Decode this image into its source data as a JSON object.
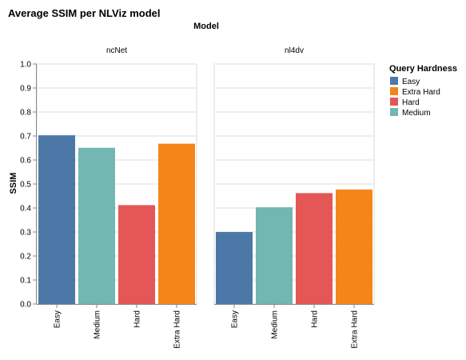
{
  "chart_data": {
    "type": "bar",
    "title": "Average SSIM per NLViz model",
    "facet_title": "Model",
    "ylabel": "SSIM",
    "ylim": [
      0,
      1
    ],
    "yticks": [
      "0.0",
      "0.1",
      "0.2",
      "0.3",
      "0.4",
      "0.5",
      "0.6",
      "0.7",
      "0.8",
      "0.9",
      "1.0"
    ],
    "grid": true,
    "legend": {
      "title": "Query Hardness",
      "position": "right",
      "items": [
        {
          "name": "Easy",
          "color": "#4c78a8"
        },
        {
          "name": "Extra Hard",
          "color": "#f58518"
        },
        {
          "name": "Hard",
          "color": "#e45756"
        },
        {
          "name": "Medium",
          "color": "#72b7b2"
        }
      ]
    },
    "categories": [
      "Easy",
      "Medium",
      "Hard",
      "Extra Hard"
    ],
    "facets": [
      {
        "name": "ncNet",
        "values": [
          0.703,
          0.651,
          0.412,
          0.668
        ]
      },
      {
        "name": "nl4dv",
        "values": [
          0.3,
          0.403,
          0.462,
          0.477
        ]
      }
    ]
  }
}
